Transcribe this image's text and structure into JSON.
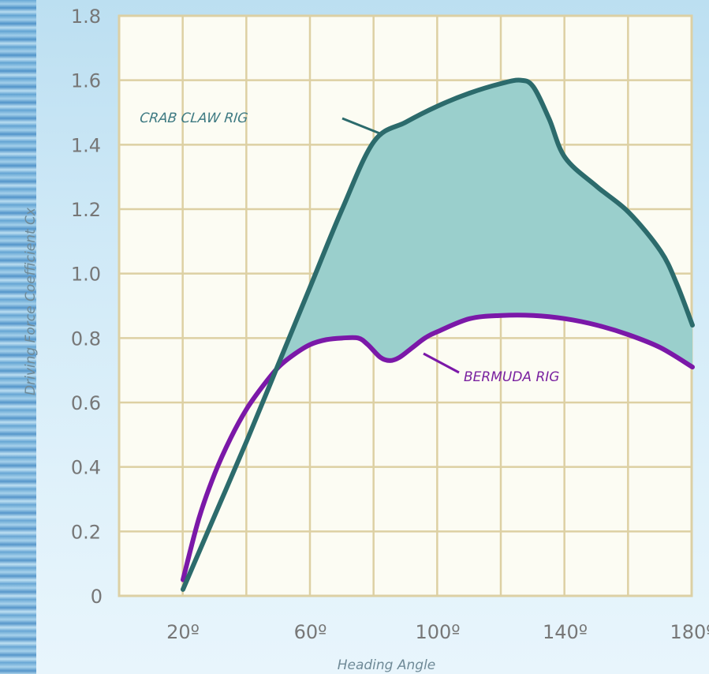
{
  "chart_data": {
    "type": "line",
    "xlabel": "Heading Angle",
    "ylabel": "Driving Force Coefficient Cx",
    "xlim": [
      20,
      180
    ],
    "ylim": [
      0,
      1.8
    ],
    "x_ticks": [
      "20º",
      "60º",
      "100º",
      "140º",
      "180º"
    ],
    "x_tick_values": [
      20,
      60,
      100,
      140,
      180
    ],
    "y_ticks": [
      "0",
      "0.2",
      "0.4",
      "0.6",
      "0.8",
      "1.0",
      "1.2",
      "1.4",
      "1.6",
      "1.8"
    ],
    "y_tick_values": [
      0,
      0.2,
      0.4,
      0.6,
      0.8,
      1.0,
      1.2,
      1.4,
      1.6,
      1.8
    ],
    "grid": true,
    "fill_between_series": true,
    "series": [
      {
        "name": "CRAB CLAW RIG",
        "color": "#2c6b6c",
        "x": [
          20,
          30,
          40,
          50,
          60,
          70,
          80,
          90,
          100,
          110,
          120,
          126,
          130,
          135,
          140,
          150,
          160,
          170,
          175,
          180
        ],
        "y": [
          0.02,
          0.25,
          0.48,
          0.72,
          0.96,
          1.2,
          1.41,
          1.47,
          1.52,
          1.56,
          1.59,
          1.6,
          1.58,
          1.48,
          1.36,
          1.27,
          1.19,
          1.07,
          0.97,
          0.84
        ]
      },
      {
        "name": "BERMUDA RIG",
        "color": "#7b18a8",
        "x": [
          20,
          25,
          30,
          35,
          40,
          45,
          50,
          55,
          60,
          65,
          70,
          75,
          78,
          82,
          85,
          88,
          92,
          96,
          100,
          110,
          120,
          130,
          140,
          150,
          160,
          170,
          180
        ],
        "y": [
          0.05,
          0.24,
          0.38,
          0.49,
          0.58,
          0.65,
          0.71,
          0.75,
          0.78,
          0.795,
          0.8,
          0.8,
          0.78,
          0.74,
          0.73,
          0.74,
          0.77,
          0.8,
          0.82,
          0.86,
          0.87,
          0.87,
          0.86,
          0.84,
          0.81,
          0.77,
          0.71
        ]
      }
    ],
    "fill_color": "#9acfcc"
  }
}
